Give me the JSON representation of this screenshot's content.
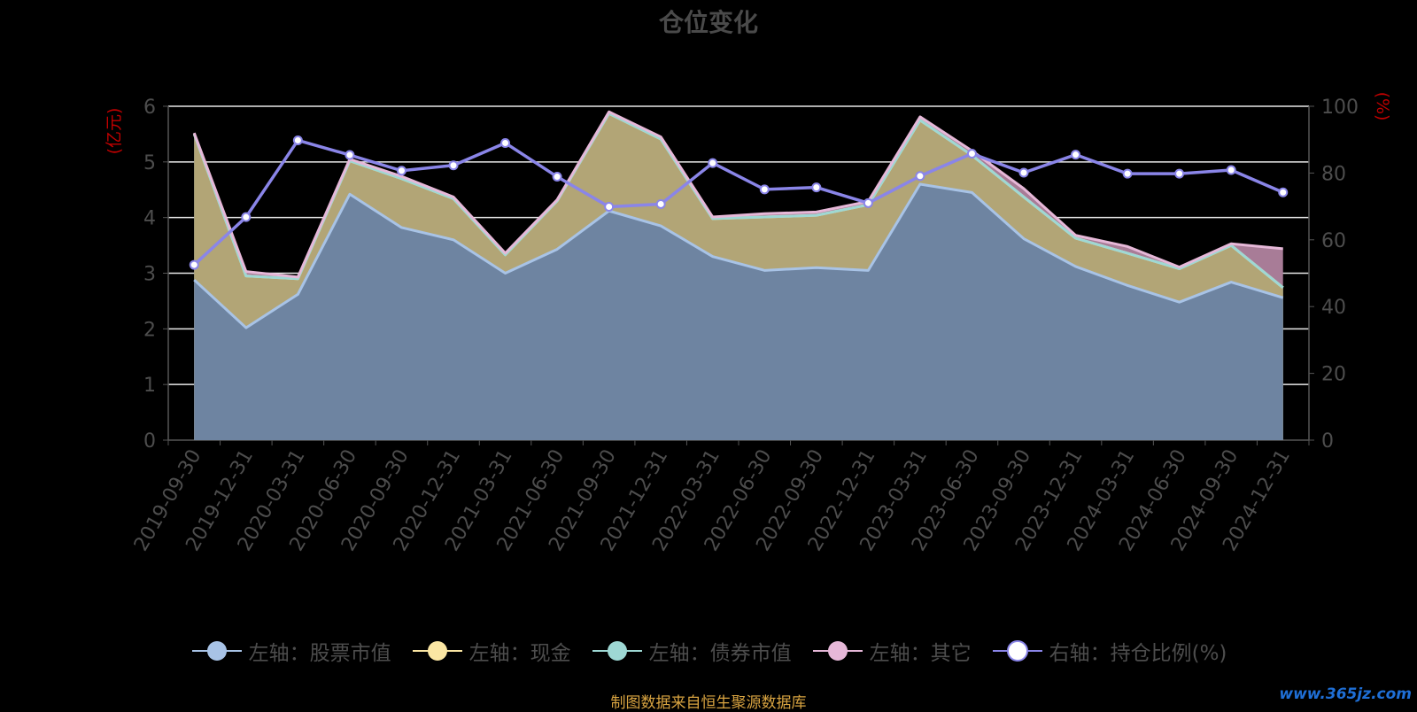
{
  "page": {
    "title": "仓位变化",
    "source_note": "制图数据来自恒生聚源数据库",
    "watermark": "www.365jz.com"
  },
  "chart_data": {
    "type": "area",
    "title": "仓位变化",
    "y_left_label": "(亿元)",
    "y_right_label": "(%)",
    "y_left_range": [
      0,
      6
    ],
    "y_right_range": [
      0,
      100
    ],
    "y_left_ticks": [
      "0",
      "1",
      "2",
      "3",
      "4",
      "5",
      "6"
    ],
    "y_right_ticks": [
      "0",
      "20",
      "40",
      "60",
      "80",
      "100"
    ],
    "grid": true,
    "legend_position": "bottom",
    "categories": [
      "2019-09-30",
      "2019-12-31",
      "2020-03-31",
      "2020-06-30",
      "2020-09-30",
      "2020-12-31",
      "2021-03-31",
      "2021-06-30",
      "2021-09-30",
      "2021-12-31",
      "2022-03-31",
      "2022-06-30",
      "2022-09-30",
      "2022-12-31",
      "2023-03-31",
      "2023-06-30",
      "2023-09-30",
      "2023-12-31",
      "2024-03-31",
      "2024-06-30",
      "2024-09-30",
      "2024-12-31"
    ],
    "series": [
      {
        "name": "左轴：股票市值",
        "type": "area",
        "axis": "left",
        "stack": true,
        "color": "#a8c3e6",
        "values": [
          2.88,
          2.02,
          2.62,
          4.42,
          3.82,
          3.6,
          3.0,
          3.43,
          4.12,
          3.85,
          3.3,
          3.05,
          3.1,
          3.05,
          4.6,
          4.45,
          3.62,
          3.12,
          2.78,
          2.48,
          2.84,
          2.56
        ]
      },
      {
        "name": "左轴：现金",
        "type": "area",
        "axis": "left",
        "stack": true,
        "color": "#fbe6a3",
        "values": [
          2.62,
          0.93,
          0.28,
          0.6,
          0.88,
          0.74,
          0.33,
          0.87,
          1.75,
          1.56,
          0.68,
          0.96,
          0.94,
          1.18,
          1.15,
          0.67,
          0.75,
          0.51,
          0.58,
          0.6,
          0.66,
          0.18
        ]
      },
      {
        "name": "左轴：债券市值",
        "type": "area",
        "axis": "left",
        "stack": true,
        "color": "#9ed8d4",
        "values": [
          0.0,
          0.0,
          0.0,
          0.0,
          0.0,
          0.0,
          0.0,
          0.0,
          0.0,
          0.0,
          0.0,
          0.0,
          0.0,
          0.0,
          0.0,
          0.0,
          0.0,
          0.0,
          0.0,
          0.0,
          0.0,
          0.0
        ]
      },
      {
        "name": "左轴：其它",
        "type": "area",
        "axis": "left",
        "stack": true,
        "color": "#e6b8d8",
        "values": [
          0.02,
          0.08,
          0.03,
          0.03,
          0.04,
          0.03,
          0.03,
          0.02,
          0.03,
          0.04,
          0.03,
          0.06,
          0.06,
          0.06,
          0.06,
          0.08,
          0.15,
          0.05,
          0.12,
          0.03,
          0.03,
          0.7
        ]
      },
      {
        "name": "右轴：持仓比例(%)",
        "type": "line",
        "axis": "right",
        "color": "#8a85e8",
        "values": [
          52.5,
          66.8,
          89.8,
          85.4,
          80.7,
          82.3,
          89.0,
          78.9,
          69.9,
          70.7,
          83.0,
          75.1,
          75.7,
          71.0,
          79.1,
          85.8,
          80.1,
          85.5,
          79.8,
          79.8,
          80.9,
          74.2
        ]
      }
    ]
  }
}
